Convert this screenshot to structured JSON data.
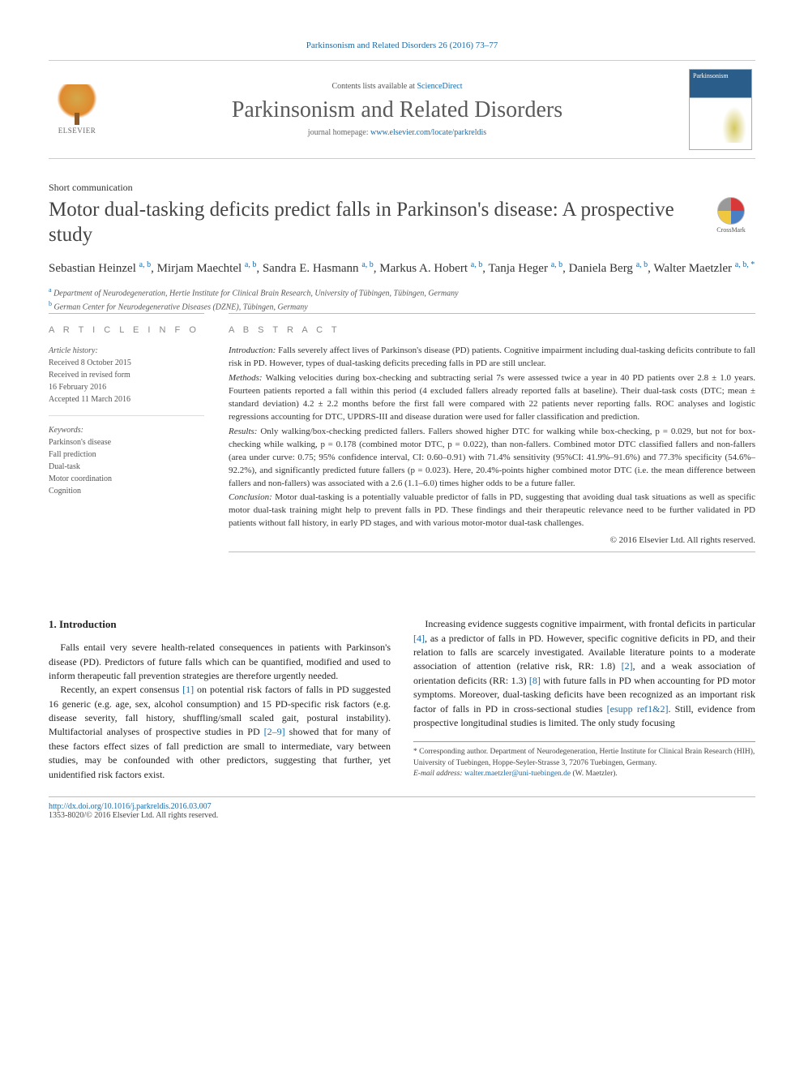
{
  "citation_header": "Parkinsonism and Related Disorders 26 (2016) 73–77",
  "header": {
    "publisher": "ELSEVIER",
    "contents_prefix": "Contents lists available at ",
    "contents_link": "ScienceDirect",
    "journal_name": "Parkinsonism and Related Disorders",
    "homepage_prefix": "journal homepage: ",
    "homepage_url": "www.elsevier.com/locate/parkreldis"
  },
  "article_type": "Short communication",
  "title": "Motor dual-tasking deficits predict falls in Parkinson's disease: A prospective study",
  "crossmark_label": "CrossMark",
  "authors_html": "Sebastian Heinzel <sup>a, b</sup>, Mirjam Maechtel <sup>a, b</sup>, Sandra E. Hasmann <sup>a, b</sup>, Markus A. Hobert <sup>a, b</sup>, Tanja Heger <sup>a, b</sup>, Daniela Berg <sup>a, b</sup>, Walter Maetzler <sup>a, b, *</sup>",
  "affiliations": {
    "a": "Department of Neurodegeneration, Hertie Institute for Clinical Brain Research, University of Tübingen, Tübingen, Germany",
    "b": "German Center for Neurodegenerative Diseases (DZNE), Tübingen, Germany"
  },
  "article_info": {
    "heading": "A R T I C L E   I N F O",
    "history_label": "Article history:",
    "received": "Received 8 October 2015",
    "revised1": "Received in revised form",
    "revised2": "16 February 2016",
    "accepted": "Accepted 11 March 2016",
    "keywords_label": "Keywords:",
    "keywords": [
      "Parkinson's disease",
      "Fall prediction",
      "Dual-task",
      "Motor coordination",
      "Cognition"
    ]
  },
  "abstract": {
    "heading": "A B S T R A C T",
    "intro": "Falls severely affect lives of Parkinson's disease (PD) patients. Cognitive impairment including dual-tasking deficits contribute to fall risk in PD. However, types of dual-tasking deficits preceding falls in PD are still unclear.",
    "methods": "Walking velocities during box-checking and subtracting serial 7s were assessed twice a year in 40 PD patients over 2.8 ± 1.0 years. Fourteen patients reported a fall within this period (4 excluded fallers already reported falls at baseline). Their dual-task costs (DTC; mean ± standard deviation) 4.2 ± 2.2 months before the first fall were compared with 22 patients never reporting falls. ROC analyses and logistic regressions accounting for DTC, UPDRS-III and disease duration were used for faller classification and prediction.",
    "results": "Only walking/box-checking predicted fallers. Fallers showed higher DTC for walking while box-checking, p = 0.029, but not for box-checking while walking, p = 0.178 (combined motor DTC, p = 0.022), than non-fallers. Combined motor DTC classified fallers and non-fallers (area under curve: 0.75; 95% confidence interval, CI: 0.60–0.91) with 71.4% sensitivity (95%CI: 41.9%–91.6%) and 77.3% specificity (54.6%–92.2%), and significantly predicted future fallers (p = 0.023). Here, 20.4%-points higher combined motor DTC (i.e. the mean difference between fallers and non-fallers) was associated with a 2.6 (1.1–6.0) times higher odds to be a future faller.",
    "conclusion": "Motor dual-tasking is a potentially valuable predictor of falls in PD, suggesting that avoiding dual task situations as well as specific motor dual-task training might help to prevent falls in PD. These findings and their therapeutic relevance need to be further validated in PD patients without fall history, in early PD stages, and with various motor-motor dual-task challenges.",
    "copyright": "© 2016 Elsevier Ltd. All rights reserved."
  },
  "body": {
    "section_heading": "1. Introduction",
    "p1": "Falls entail very severe health-related consequences in patients with Parkinson's disease (PD). Predictors of future falls which can be quantified, modified and used to inform therapeutic fall prevention strategies are therefore urgently needed.",
    "p2_a": "Recently, an expert consensus ",
    "p2_ref1": "[1]",
    "p2_b": " on potential risk factors of falls in PD suggested 16 generic (e.g. age, sex, alcohol consumption) and 15 PD-specific risk factors (e.g. disease severity, fall history, shuffling/small scaled gait, postural instability). Multifactorial analyses of prospective studies in PD ",
    "p2_ref2": "[2–9]",
    "p2_c": " showed that for many of these factors effect sizes of fall prediction are small to intermediate, vary between studies, may be confounded with other predictors, suggesting that further, yet unidentified risk factors exist.",
    "p3_a": "Increasing evidence suggests cognitive impairment, with frontal deficits in particular ",
    "p3_ref1": "[4]",
    "p3_b": ", as a predictor of falls in PD. However, specific cognitive deficits in PD, and their relation to falls are scarcely investigated. Available literature points to a moderate association of attention (relative risk, RR: 1.8) ",
    "p3_ref2": "[2]",
    "p3_c": ", and a weak association of orientation deficits (RR: 1.3) ",
    "p3_ref3": "[8]",
    "p3_d": " with future falls in PD when accounting for PD motor symptoms. Moreover, dual-tasking deficits have been recognized as an important risk factor of falls in PD in cross-sectional studies ",
    "p3_ref4": "[esupp ref1&2]",
    "p3_e": ". Still, evidence from prospective longitudinal studies is limited. The only study focusing"
  },
  "footnote": {
    "corresponding": "* Corresponding author. Department of Neurodegeneration, Hertie Institute for Clinical Brain Research (HIH), University of Tuebingen, Hoppe-Seyler-Strasse 3, 72076 Tuebingen, Germany.",
    "email_label": "E-mail address: ",
    "email": "walter.maetzler@uni-tuebingen.de",
    "email_suffix": " (W. Maetzler)."
  },
  "bottom": {
    "doi": "http://dx.doi.org/10.1016/j.parkreldis.2016.03.007",
    "issn_line": "1353-8020/© 2016 Elsevier Ltd. All rights reserved."
  },
  "colors": {
    "link": "#1a6ba8",
    "rule": "#bbbbbb",
    "text": "#222222",
    "muted": "#555555"
  }
}
